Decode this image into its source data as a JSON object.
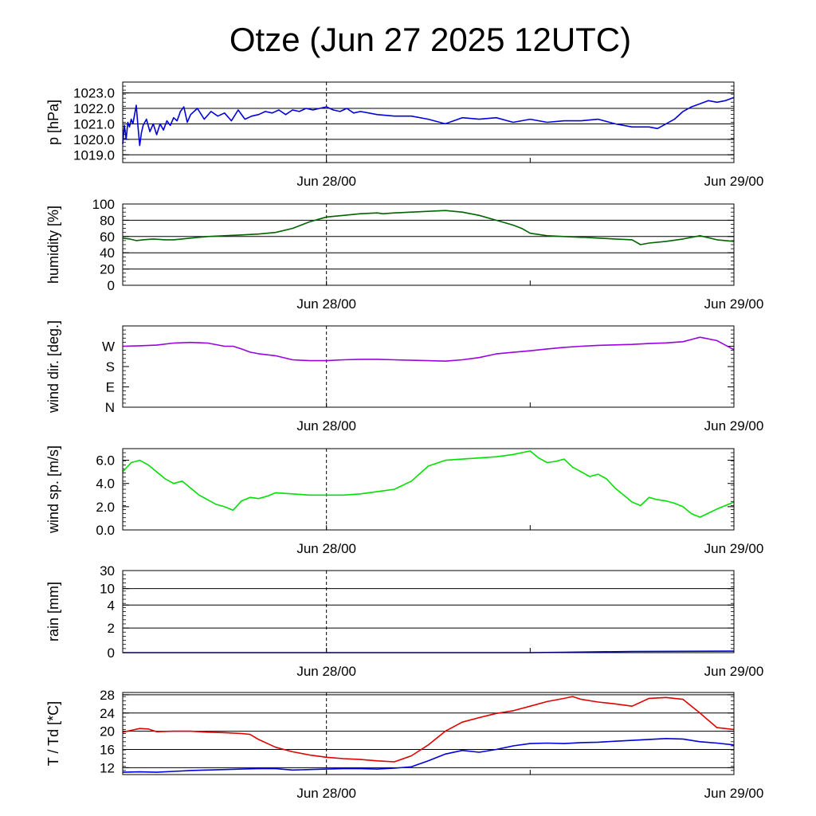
{
  "title": "Otze (Jun 27 2025 12UTC)",
  "x_ticks": [
    "Jun 28/00",
    "Jun 29/00"
  ],
  "chart_data": [
    {
      "type": "line",
      "ylabel": "p [hPa]",
      "x_unit": "hours after Jun 27 12UTC",
      "xlim": [
        0,
        36
      ],
      "ylim": [
        1018.5,
        1023.7
      ],
      "yticks": [
        1019.0,
        1020.0,
        1021.0,
        1022.0,
        1023.0
      ],
      "ytick_labels": [
        "1019.0",
        "1020.0",
        "1021.0",
        "1022.0",
        "1023.0"
      ],
      "grid": true,
      "series": [
        {
          "color": "#0000dd",
          "x": [
            0,
            0.1,
            0.2,
            0.3,
            0.4,
            0.5,
            0.6,
            0.7,
            0.8,
            0.9,
            1.0,
            1.1,
            1.2,
            1.4,
            1.6,
            1.8,
            2.0,
            2.2,
            2.4,
            2.6,
            2.8,
            3.0,
            3.2,
            3.4,
            3.6,
            3.8,
            4.0,
            4.4,
            4.8,
            5.2,
            5.6,
            6.0,
            6.4,
            6.8,
            7.2,
            7.6,
            8.0,
            8.4,
            8.8,
            9.2,
            9.6,
            10.0,
            10.4,
            10.8,
            11.2,
            11.6,
            12.0,
            12.4,
            12.8,
            13.2,
            13.6,
            14.0,
            15.0,
            16.0,
            17.0,
            18.0,
            19.0,
            20.0,
            21.0,
            22.0,
            23.0,
            24.0,
            25.0,
            26.0,
            27.0,
            28.0,
            29.0,
            30.0,
            31.0,
            31.5,
            32.0,
            32.5,
            33.0,
            33.5,
            34.0,
            34.5,
            35.0,
            35.5,
            36.0
          ],
          "y": [
            1019.7,
            1020.9,
            1020.0,
            1021.1,
            1020.8,
            1021.3,
            1021.0,
            1021.6,
            1022.2,
            1020.8,
            1019.6,
            1020.4,
            1020.9,
            1021.3,
            1020.5,
            1021.0,
            1020.3,
            1021.0,
            1020.6,
            1021.2,
            1020.9,
            1021.4,
            1021.2,
            1021.8,
            1022.1,
            1021.1,
            1021.6,
            1022.0,
            1021.3,
            1021.8,
            1021.5,
            1021.7,
            1021.2,
            1021.9,
            1021.3,
            1021.5,
            1021.6,
            1021.8,
            1021.7,
            1021.9,
            1021.6,
            1021.9,
            1021.8,
            1022.0,
            1021.9,
            1022.0,
            1022.1,
            1021.9,
            1021.8,
            1022.0,
            1021.7,
            1021.8,
            1021.6,
            1021.5,
            1021.5,
            1021.3,
            1021.0,
            1021.4,
            1021.3,
            1021.4,
            1021.1,
            1021.3,
            1021.1,
            1021.2,
            1021.2,
            1021.3,
            1021.0,
            1020.8,
            1020.8,
            1020.7,
            1021.0,
            1021.3,
            1021.8,
            1022.1,
            1022.3,
            1022.5,
            1022.4,
            1022.5,
            1022.7
          ]
        }
      ]
    },
    {
      "type": "line",
      "ylabel": "humidity [%]",
      "xlim": [
        0,
        36
      ],
      "ylim": [
        0,
        100
      ],
      "yticks": [
        0,
        20,
        40,
        60,
        80,
        100
      ],
      "ytick_labels": [
        "0",
        "20",
        "40",
        "60",
        "80",
        "100"
      ],
      "grid": true,
      "series": [
        {
          "color": "#006400",
          "x": [
            0,
            0.4,
            0.8,
            1.2,
            1.8,
            2.5,
            3.0,
            4.0,
            5.0,
            6.0,
            7.0,
            8.0,
            9.0,
            10.0,
            11.0,
            12.0,
            13.0,
            14.0,
            15.0,
            15.3,
            16.0,
            17.0,
            18.0,
            19.0,
            20.0,
            21.0,
            22.0,
            23.0,
            23.5,
            24.0,
            25.0,
            26.0,
            27.0,
            27.2,
            28.0,
            29.0,
            30.0,
            30.5,
            31.0,
            32.0,
            33.0,
            34.0,
            35.0,
            36.0
          ],
          "y": [
            58,
            57,
            55,
            56,
            57,
            56,
            56,
            58,
            60,
            61,
            62,
            63,
            65,
            70,
            78,
            84,
            86,
            88,
            89,
            88,
            89,
            90,
            91,
            92,
            90,
            86,
            80,
            74,
            70,
            64,
            61,
            60,
            59,
            59,
            58,
            57,
            56,
            50,
            52,
            54,
            57,
            61,
            56,
            54
          ]
        }
      ]
    },
    {
      "type": "line",
      "ylabel": "wind dir. [deg.]",
      "xlim": [
        0,
        36
      ],
      "ylim": [
        0,
        360
      ],
      "yticks": [
        0,
        90,
        180,
        270
      ],
      "ytick_labels": [
        "N",
        "E",
        "S",
        "W"
      ],
      "grid": false,
      "series": [
        {
          "color": "#9b00e0",
          "x": [
            0,
            1.0,
            2.0,
            3.0,
            4.0,
            5.0,
            6.0,
            6.5,
            7.0,
            7.5,
            8.0,
            9.0,
            10.0,
            11.0,
            12.0,
            13.0,
            14.0,
            15.0,
            16.0,
            17.0,
            18.0,
            19.0,
            20.0,
            21.0,
            22.0,
            23.0,
            24.0,
            25.0,
            26.0,
            27.0,
            28.0,
            29.0,
            30.0,
            31.0,
            32.0,
            33.0,
            33.5,
            34.0,
            35.0,
            36.0
          ],
          "y": [
            270,
            272,
            275,
            284,
            287,
            284,
            270,
            270,
            258,
            244,
            237,
            228,
            210,
            206,
            206,
            210,
            212,
            212,
            210,
            208,
            206,
            204,
            210,
            220,
            236,
            243,
            250,
            258,
            265,
            270,
            274,
            276,
            278,
            282,
            285,
            290,
            300,
            310,
            295,
            255
          ]
        }
      ]
    },
    {
      "type": "line",
      "ylabel": "wind sp. [m/s]",
      "xlim": [
        0,
        36
      ],
      "ylim": [
        0,
        7
      ],
      "yticks": [
        0.0,
        2.0,
        4.0,
        6.0
      ],
      "ytick_labels": [
        "0.0",
        "2.0",
        "4.0",
        "6.0"
      ],
      "grid": false,
      "series": [
        {
          "color": "#00e000",
          "x": [
            0,
            0.5,
            1.0,
            1.5,
            2.0,
            2.5,
            3.0,
            3.5,
            4.0,
            4.5,
            5.0,
            5.5,
            6.0,
            6.5,
            7.0,
            7.5,
            8.0,
            8.5,
            9.0,
            10.0,
            11.0,
            12.0,
            13.0,
            14.0,
            15.0,
            16.0,
            17.0,
            18.0,
            19.0,
            20.0,
            21.0,
            22.0,
            23.0,
            24.0,
            24.5,
            25.0,
            25.5,
            26.0,
            26.5,
            27.0,
            27.5,
            28.0,
            28.5,
            29.0,
            30.0,
            30.5,
            31.0,
            31.5,
            32.0,
            32.5,
            33.0,
            33.5,
            34.0,
            35.0,
            36.0
          ],
          "y": [
            5.0,
            5.8,
            6.0,
            5.6,
            5.0,
            4.4,
            4.0,
            4.2,
            3.6,
            3.0,
            2.6,
            2.2,
            2.0,
            1.7,
            2.5,
            2.8,
            2.7,
            2.9,
            3.2,
            3.1,
            3.0,
            3.0,
            3.0,
            3.1,
            3.3,
            3.5,
            4.2,
            5.5,
            6.0,
            6.1,
            6.2,
            6.3,
            6.5,
            6.8,
            6.2,
            5.8,
            5.9,
            6.1,
            5.4,
            5.0,
            4.6,
            4.8,
            4.4,
            3.6,
            2.4,
            2.1,
            2.8,
            2.6,
            2.5,
            2.3,
            2.0,
            1.4,
            1.1,
            1.8,
            2.4
          ]
        }
      ]
    },
    {
      "type": "line",
      "ylabel": "rain [mm]",
      "xlim": [
        0,
        36
      ],
      "ylim": [
        0,
        30
      ],
      "yticks": [
        0,
        2,
        4,
        10,
        30
      ],
      "ytick_labels": [
        "0",
        "2",
        "4",
        "10",
        "30"
      ],
      "grid": true,
      "series": [
        {
          "color": "#0000dd",
          "x": [
            0,
            24,
            26,
            30,
            36
          ],
          "y": [
            0,
            0,
            0.03,
            0.1,
            0.12
          ]
        }
      ]
    },
    {
      "type": "line",
      "ylabel": "T / Td [*C]",
      "xlim": [
        0,
        36
      ],
      "ylim": [
        10.5,
        28.5
      ],
      "yticks": [
        12,
        16,
        20,
        24,
        28
      ],
      "ytick_labels": [
        "12",
        "16",
        "20",
        "24",
        "28"
      ],
      "grid": true,
      "series": [
        {
          "color": "#e00000",
          "x": [
            0,
            0.5,
            1.0,
            1.5,
            2.0,
            3.0,
            4.0,
            5.0,
            6.0,
            7.0,
            7.5,
            8.0,
            9.0,
            10.0,
            11.0,
            12.0,
            13.0,
            14.0,
            15.0,
            16.0,
            17.0,
            18.0,
            19.0,
            20.0,
            21.0,
            22.0,
            23.0,
            23.5,
            24.0,
            25.0,
            26.0,
            26.5,
            27.0,
            28.0,
            29.0,
            30.0,
            31.0,
            32.0,
            33.0,
            34.0,
            35.0,
            36.0
          ],
          "y": [
            19.8,
            20.2,
            20.6,
            20.5,
            19.9,
            20.0,
            20.0,
            19.8,
            19.7,
            19.5,
            19.3,
            18.2,
            16.5,
            15.5,
            14.8,
            14.3,
            14.0,
            13.8,
            13.5,
            13.3,
            14.6,
            17.0,
            20.0,
            22.0,
            23.0,
            23.9,
            24.5,
            25.0,
            25.5,
            26.5,
            27.2,
            27.6,
            27.0,
            26.4,
            26.0,
            25.5,
            27.2,
            27.4,
            27.0,
            24.0,
            20.8,
            20.4
          ]
        },
        {
          "color": "#0000dd",
          "x": [
            0,
            1.0,
            2.0,
            3.0,
            4.0,
            5.0,
            6.0,
            7.0,
            8.0,
            9.0,
            10.0,
            11.0,
            12.0,
            13.0,
            14.0,
            15.0,
            16.0,
            17.0,
            18.0,
            19.0,
            20.0,
            21.0,
            22.0,
            23.0,
            24.0,
            25.0,
            26.0,
            27.0,
            28.0,
            29.0,
            30.0,
            31.0,
            32.0,
            33.0,
            34.0,
            35.0,
            36.0
          ],
          "y": [
            11.0,
            11.1,
            11.0,
            11.2,
            11.4,
            11.5,
            11.6,
            11.7,
            11.8,
            11.8,
            11.5,
            11.6,
            11.7,
            11.8,
            11.8,
            11.7,
            11.9,
            12.2,
            13.5,
            15.0,
            15.8,
            15.4,
            16.0,
            16.8,
            17.3,
            17.4,
            17.3,
            17.5,
            17.6,
            17.8,
            18.0,
            18.2,
            18.4,
            18.3,
            17.7,
            17.4,
            17.0
          ]
        }
      ]
    }
  ]
}
